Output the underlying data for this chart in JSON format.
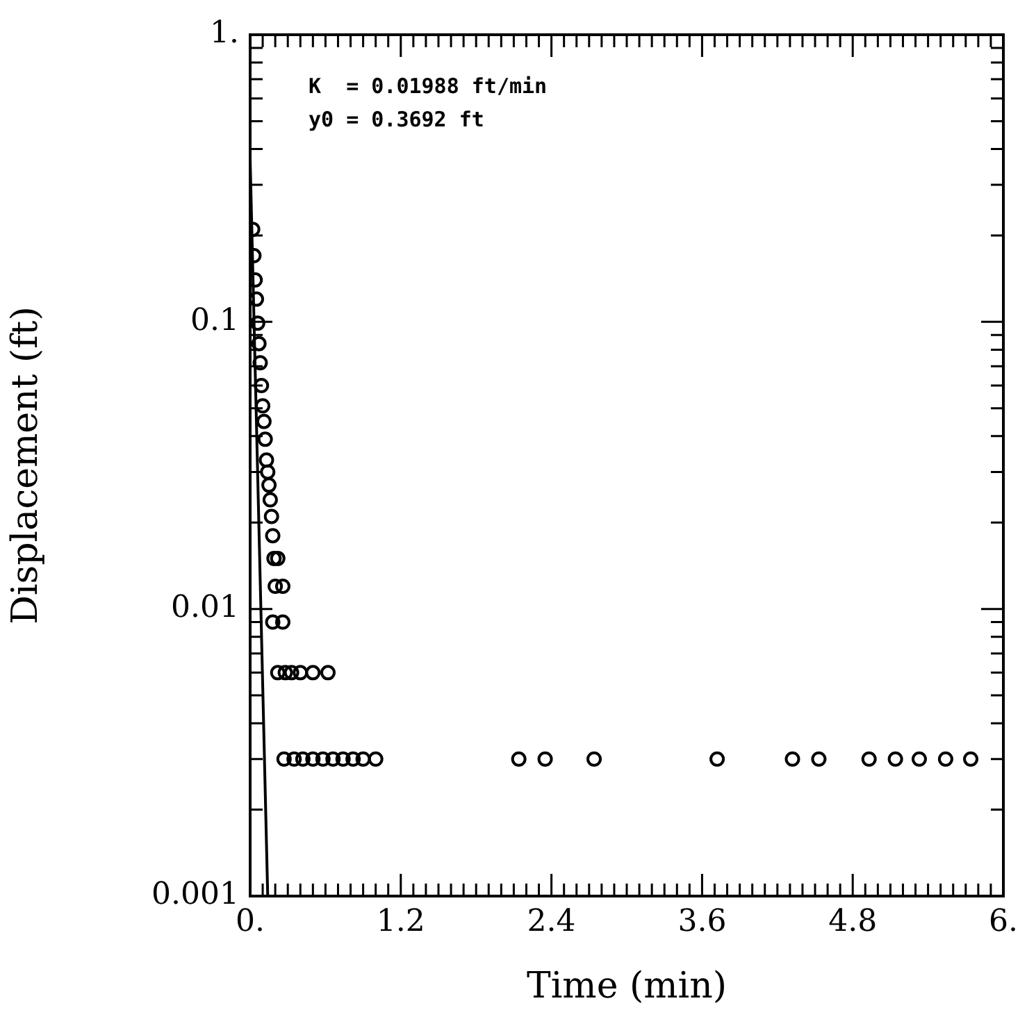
{
  "chart_data": {
    "type": "scatter",
    "xlabel": "Time (min)",
    "ylabel": "Displacement (ft)",
    "annotations": [
      "K  = 0.01988 ft/min",
      "y0 = 0.3692 ft"
    ],
    "log": "y",
    "marker": "circle",
    "grid": false,
    "legend": false,
    "xlim": [
      0,
      6
    ],
    "ylim": [
      0.001,
      1
    ],
    "xticks": [
      {
        "value": 0,
        "label": "0."
      },
      {
        "value": 0.1,
        "label": null
      },
      {
        "value": 0.2,
        "label": null
      },
      {
        "value": 0.3,
        "label": null
      },
      {
        "value": 0.4,
        "label": null
      },
      {
        "value": 0.5,
        "label": null
      },
      {
        "value": 0.6,
        "label": null
      },
      {
        "value": 0.7,
        "label": null
      },
      {
        "value": 0.8,
        "label": null
      },
      {
        "value": 0.9,
        "label": null
      },
      {
        "value": 1.0,
        "label": null
      },
      {
        "value": 1.1,
        "label": null
      },
      1.2,
      {
        "value": 1.3,
        "label": null
      },
      {
        "value": 1.4,
        "label": null
      },
      {
        "value": 1.5,
        "label": null
      },
      {
        "value": 1.6,
        "label": null
      },
      {
        "value": 1.7,
        "label": null
      },
      {
        "value": 1.8,
        "label": null
      },
      {
        "value": 1.9,
        "label": null
      },
      {
        "value": 2.0,
        "label": null
      },
      {
        "value": 2.1,
        "label": null
      },
      {
        "value": 2.2,
        "label": null
      },
      {
        "value": 2.3,
        "label": null
      },
      2.4,
      {
        "value": 2.5,
        "label": null
      },
      {
        "value": 2.6,
        "label": null
      },
      {
        "value": 2.7,
        "label": null
      },
      {
        "value": 2.8,
        "label": null
      },
      {
        "value": 2.9,
        "label": null
      },
      {
        "value": 3.0,
        "label": null
      },
      {
        "value": 3.1,
        "label": null
      },
      {
        "value": 3.2,
        "label": null
      },
      {
        "value": 3.3,
        "label": null
      },
      {
        "value": 3.4,
        "label": null
      },
      {
        "value": 3.5,
        "label": null
      },
      3.6,
      {
        "value": 3.7,
        "label": null
      },
      {
        "value": 3.8,
        "label": null
      },
      {
        "value": 3.9,
        "label": null
      },
      {
        "value": 4.0,
        "label": null
      },
      {
        "value": 4.1,
        "label": null
      },
      {
        "value": 4.2,
        "label": null
      },
      {
        "value": 4.3,
        "label": null
      },
      {
        "value": 4.4,
        "label": null
      },
      {
        "value": 4.5,
        "label": null
      },
      {
        "value": 4.6,
        "label": null
      },
      {
        "value": 4.7,
        "label": null
      },
      4.8,
      {
        "value": 4.9,
        "label": null
      },
      {
        "value": 5.0,
        "label": null
      },
      {
        "value": 5.1,
        "label": null
      },
      {
        "value": 5.2,
        "label": null
      },
      {
        "value": 5.3,
        "label": null
      },
      {
        "value": 5.4,
        "label": null
      },
      {
        "value": 5.5,
        "label": null
      },
      {
        "value": 5.6,
        "label": null
      },
      {
        "value": 5.7,
        "label": null
      },
      {
        "value": 5.8,
        "label": null
      },
      {
        "value": 5.9,
        "label": null
      },
      {
        "value": 6,
        "label": "6."
      }
    ],
    "yticks": [
      {
        "value": 0.001,
        "label": "0.001"
      },
      {
        "value": 0.002,
        "label": null
      },
      {
        "value": 0.003,
        "label": null
      },
      {
        "value": 0.004,
        "label": null
      },
      {
        "value": 0.005,
        "label": null
      },
      {
        "value": 0.006,
        "label": null
      },
      {
        "value": 0.007,
        "label": null
      },
      {
        "value": 0.008,
        "label": null
      },
      {
        "value": 0.009,
        "label": null
      },
      {
        "value": 0.01,
        "label": "0.01"
      },
      {
        "value": 0.02,
        "label": null
      },
      {
        "value": 0.03,
        "label": null
      },
      {
        "value": 0.04,
        "label": null
      },
      {
        "value": 0.05,
        "label": null
      },
      {
        "value": 0.06,
        "label": null
      },
      {
        "value": 0.07,
        "label": null
      },
      {
        "value": 0.08,
        "label": null
      },
      {
        "value": 0.09,
        "label": null
      },
      {
        "value": 0.1,
        "label": "0.1"
      },
      {
        "value": 0.2,
        "label": null
      },
      {
        "value": 0.3,
        "label": null
      },
      {
        "value": 0.4,
        "label": null
      },
      {
        "value": 0.5,
        "label": null
      },
      {
        "value": 0.6,
        "label": null
      },
      {
        "value": 0.7,
        "label": null
      },
      {
        "value": 0.8,
        "label": null
      },
      {
        "value": 0.9,
        "label": null
      },
      {
        "value": 1,
        "label": "1."
      }
    ],
    "series": [
      {
        "color": "#000000",
        "x": [
          0.02,
          0.03,
          0.04,
          0.05,
          0.06,
          0.07,
          0.08,
          0.09,
          0.1,
          0.11,
          0.12,
          0.13,
          0.14,
          0.15,
          0.16,
          0.17,
          0.18,
          0.19,
          0.22,
          0.2,
          0.26,
          0.18,
          0.26,
          0.22,
          0.28,
          0.33,
          0.4,
          0.5,
          0.62,
          0.27,
          0.35,
          0.42,
          0.5,
          0.58,
          0.66,
          0.74,
          0.82,
          0.9,
          1.0,
          2.14,
          2.35,
          2.74,
          3.72,
          4.32,
          4.53,
          4.93,
          5.14,
          5.33,
          5.54,
          5.74
        ],
        "values": [
          0.21,
          0.17,
          0.14,
          0.12,
          0.099,
          0.084,
          0.072,
          0.06,
          0.051,
          0.045,
          0.039,
          0.033,
          0.03,
          0.027,
          0.024,
          0.021,
          0.018,
          0.015,
          0.015,
          0.012,
          0.012,
          0.009,
          0.009,
          0.006,
          0.006,
          0.006,
          0.006,
          0.006,
          0.006,
          0.003,
          0.003,
          0.003,
          0.003,
          0.003,
          0.003,
          0.003,
          0.003,
          0.003,
          0.003,
          0.003,
          0.003,
          0.003,
          0.003,
          0.003,
          0.003,
          0.003,
          0.003,
          0.003,
          0.003,
          0.003
        ]
      },
      {
        "type": "line",
        "color": "#000000",
        "marker": "none",
        "x": [
          0,
          0.14
        ],
        "values": [
          0.3692,
          0.001
        ]
      }
    ]
  }
}
